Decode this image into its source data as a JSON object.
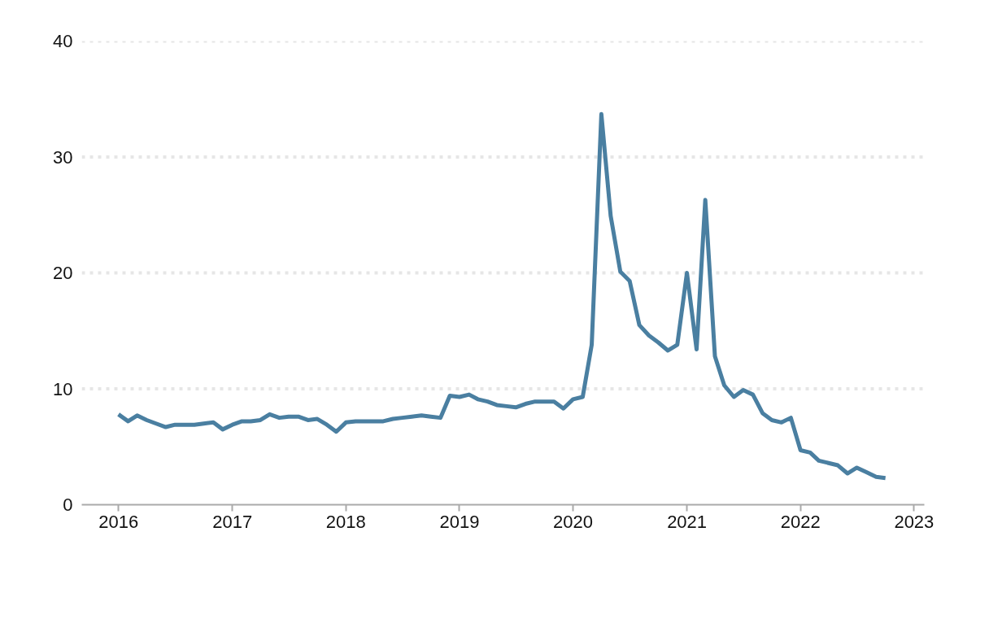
{
  "chart_data": {
    "type": "line",
    "x": [
      "2016-01",
      "2016-02",
      "2016-03",
      "2016-04",
      "2016-05",
      "2016-06",
      "2016-07",
      "2016-08",
      "2016-09",
      "2016-10",
      "2016-11",
      "2016-12",
      "2017-01",
      "2017-02",
      "2017-03",
      "2017-04",
      "2017-05",
      "2017-06",
      "2017-07",
      "2017-08",
      "2017-09",
      "2017-10",
      "2017-11",
      "2017-12",
      "2018-01",
      "2018-02",
      "2018-03",
      "2018-04",
      "2018-05",
      "2018-06",
      "2018-07",
      "2018-08",
      "2018-09",
      "2018-10",
      "2018-11",
      "2018-12",
      "2019-01",
      "2019-02",
      "2019-03",
      "2019-04",
      "2019-05",
      "2019-06",
      "2019-07",
      "2019-08",
      "2019-09",
      "2019-10",
      "2019-11",
      "2019-12",
      "2020-01",
      "2020-02",
      "2020-03",
      "2020-04",
      "2020-05",
      "2020-06",
      "2020-07",
      "2020-08",
      "2020-09",
      "2020-10",
      "2020-11",
      "2020-12",
      "2021-01",
      "2021-02",
      "2021-03",
      "2021-04",
      "2021-05",
      "2021-06",
      "2021-07",
      "2021-08",
      "2021-09",
      "2021-10",
      "2021-11",
      "2021-12",
      "2022-01",
      "2022-02",
      "2022-03",
      "2022-04",
      "2022-05",
      "2022-06",
      "2022-07",
      "2022-08",
      "2022-09",
      "2022-10"
    ],
    "series": [
      {
        "color": "#4a7fa1",
        "values": [
          7.8,
          7.2,
          7.7,
          7.3,
          7.0,
          6.7,
          6.9,
          6.9,
          6.9,
          7.0,
          7.1,
          6.5,
          6.9,
          7.2,
          7.2,
          7.3,
          7.8,
          7.5,
          7.6,
          7.6,
          7.3,
          7.4,
          6.9,
          6.3,
          7.1,
          7.2,
          7.2,
          7.2,
          7.2,
          7.4,
          7.5,
          7.6,
          7.7,
          7.6,
          7.5,
          9.4,
          9.3,
          9.5,
          9.1,
          8.9,
          8.6,
          8.5,
          8.4,
          8.7,
          8.9,
          8.9,
          8.9,
          8.3,
          9.1,
          9.3,
          13.8,
          33.7,
          24.9,
          20.1,
          19.3,
          15.5,
          14.6,
          14.0,
          13.3,
          13.8,
          20.0,
          13.4,
          26.3,
          12.8,
          10.3,
          9.3,
          9.9,
          9.5,
          7.9,
          7.3,
          7.1,
          7.5,
          4.7,
          4.5,
          3.8,
          3.6,
          3.4,
          2.7,
          3.2,
          2.8,
          2.4,
          2.3
        ]
      }
    ],
    "xlim": [
      "2015-09-05",
      "2023-02-03"
    ],
    "xticks": [
      "2016",
      "2017",
      "2018",
      "2019",
      "2020",
      "2021",
      "2022",
      "2023"
    ],
    "ylim": [
      0,
      40
    ],
    "yticks": [
      0,
      10,
      20,
      30,
      40
    ],
    "grid": "y",
    "marker": "none",
    "line_style": "solid"
  }
}
